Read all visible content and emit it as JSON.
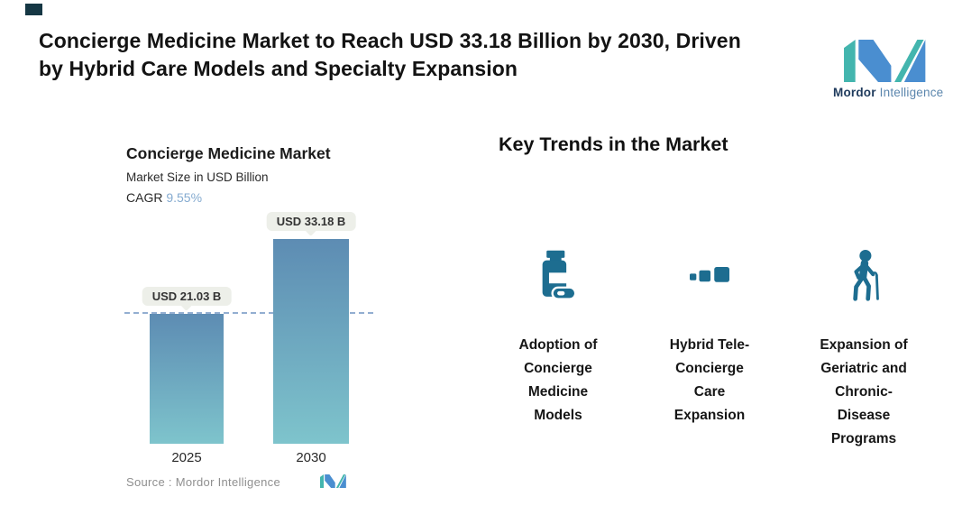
{
  "header": {
    "title_lines": [
      "Concierge Medicine Market to Reach USD 33.18 Billion by 2030, Driven",
      "by Hybrid Care Models and Specialty Expansion"
    ],
    "brand": {
      "name_bold": "Mordor",
      "name_light": "Intelligence"
    }
  },
  "chart": {
    "title": "Concierge Medicine Market",
    "subtitle": "Market Size in USD Billion",
    "cagr_label": "CAGR",
    "cagr_value": "9.55%",
    "source_label": "Source : Mordor Intelligence"
  },
  "chart_data": {
    "type": "bar",
    "title": "Concierge Medicine Market",
    "ylabel": "Market Size in USD Billion",
    "categories": [
      "2025",
      "2030"
    ],
    "values": [
      21.03,
      33.18
    ],
    "value_labels": [
      "USD 21.03 B",
      "USD 33.18 B"
    ],
    "unit": "USD Billion",
    "cagr_percent": 9.55,
    "ylim": [
      0,
      33.18
    ],
    "reference_line": {
      "value": 21.03,
      "style": "dashed"
    },
    "grid": false,
    "legend": false,
    "bar_gradient": [
      "#5d8cb3",
      "#7ec4cc"
    ]
  },
  "trends": {
    "heading": "Key Trends in the Market",
    "items": [
      {
        "icon": "pill-bottle-icon",
        "label": "Adoption of\nConcierge\nMedicine\nModels"
      },
      {
        "icon": "scaling-squares-icon",
        "label": "Hybrid Tele-\nConcierge\nCare\nExpansion"
      },
      {
        "icon": "elderly-person-cane-icon",
        "label": "Expansion of\nGeriatric and\nChronic-\nDisease\nPrograms"
      }
    ]
  },
  "colors": {
    "accent_teal": "#43b5ae",
    "accent_blue": "#4a8ed0",
    "icon_blue": "#1d6d90",
    "dashed_line": "#93aed1",
    "cagr_value_text": "#85abd0",
    "callout_bg": "#edefe9",
    "source_text": "#8f8f8f",
    "corner_mark": "#153744"
  }
}
